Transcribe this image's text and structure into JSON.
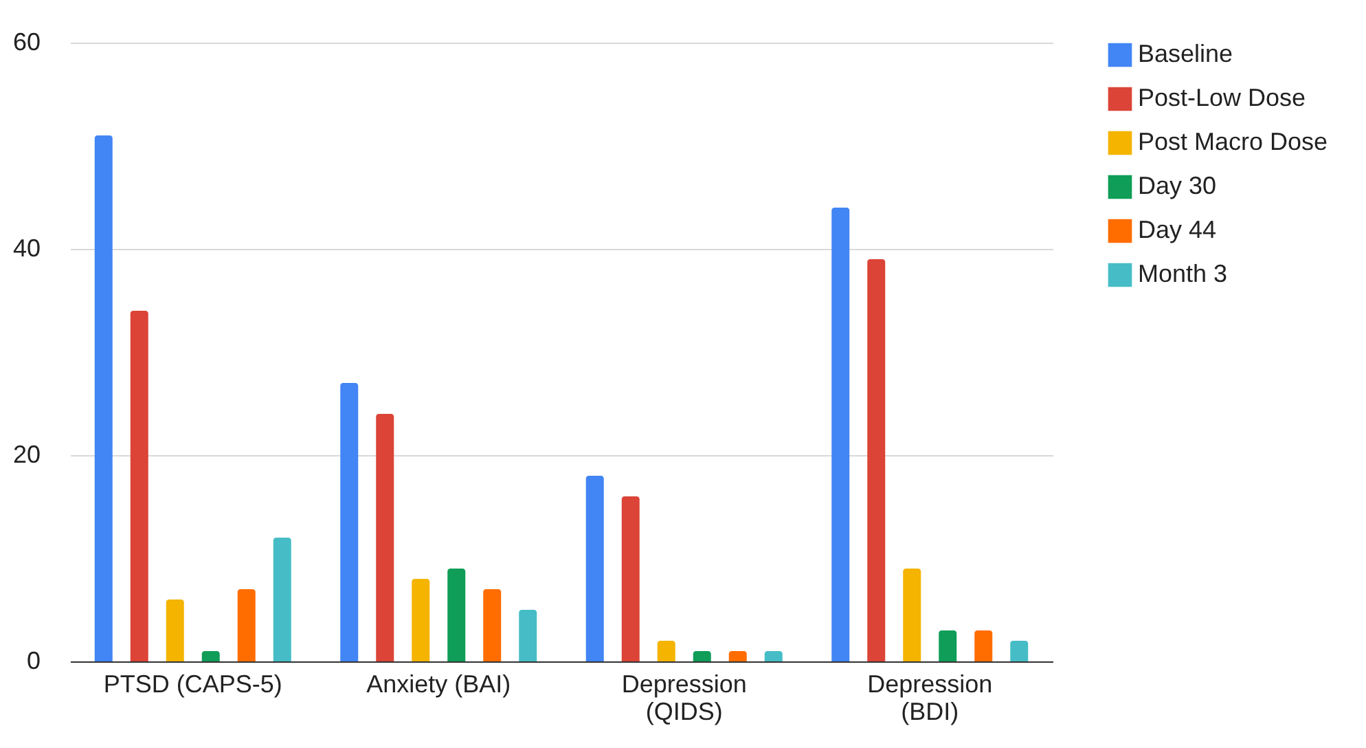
{
  "chart_data": {
    "type": "bar",
    "categories": [
      "PTSD (CAPS-5)",
      "Anxiety (BAI)",
      "Depression (QIDS)",
      "Depression (BDI)"
    ],
    "series": [
      {
        "name": "Baseline",
        "color": "#4285f4",
        "values": [
          51,
          27,
          18,
          44
        ]
      },
      {
        "name": "Post-Low Dose",
        "color": "#db4437",
        "values": [
          34,
          24,
          16,
          39
        ]
      },
      {
        "name": "Post Macro Dose",
        "color": "#f4b400",
        "values": [
          6,
          8,
          2,
          9
        ]
      },
      {
        "name": "Day 30",
        "color": "#0f9d58",
        "values": [
          1,
          9,
          1,
          3
        ]
      },
      {
        "name": "Day 44",
        "color": "#ff6d01",
        "values": [
          7,
          7,
          1,
          3
        ]
      },
      {
        "name": "Month 3",
        "color": "#46bdc6",
        "values": [
          12,
          5,
          1,
          2
        ]
      }
    ],
    "ylim": [
      0,
      60
    ],
    "yticks": [
      0,
      20,
      40,
      60
    ],
    "grid": "y",
    "legend": "right"
  }
}
